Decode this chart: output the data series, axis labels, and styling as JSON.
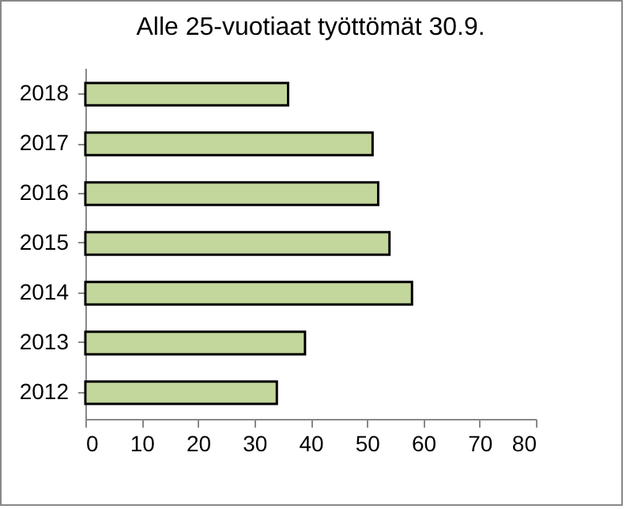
{
  "chart_data": {
    "type": "bar",
    "orientation": "horizontal",
    "title": "Alle 25-vuotiaat työttömät 30.9.",
    "categories": [
      "2018",
      "2017",
      "2016",
      "2015",
      "2014",
      "2013",
      "2012"
    ],
    "values": [
      36,
      51,
      52,
      54,
      58,
      39,
      34
    ],
    "color": "#c3d69b",
    "xlim": [
      0,
      80
    ],
    "xticks": [
      0,
      10,
      20,
      30,
      40,
      50,
      60,
      70,
      80
    ],
    "grid": false
  }
}
